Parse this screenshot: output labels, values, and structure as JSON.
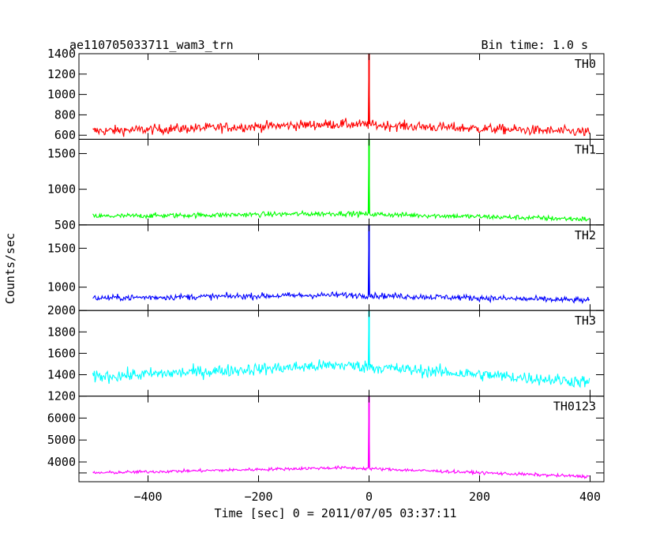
{
  "chart_data": {
    "type": "line",
    "title": "ae110705033711_wam3_trn",
    "subtitle": "Bin time: 1.0 s",
    "xlabel": "Time [sec] 0 = 2011/07/05 03:37:11",
    "ylabel": "Counts/sec",
    "xlim": [
      -525,
      425
    ],
    "x_ticks": [
      -400,
      -200,
      0,
      200,
      400
    ],
    "x_tick_labels": [
      "−400",
      "−200",
      "0",
      "200",
      "400"
    ],
    "grid": false,
    "panels": [
      {
        "name": "TH0",
        "color": "#ff0000",
        "ylim": [
          560,
          1400
        ],
        "y_ticks": [
          600,
          800,
          1000,
          1200,
          1400
        ],
        "y_tick_labels": [
          "600",
          "800",
          "1000",
          "1200",
          "1400"
        ],
        "peak_value": 1400,
        "start_level": 640,
        "mid_level": 710,
        "end_level": 630,
        "noise": 38,
        "points": [
          [
            -500,
            640
          ],
          [
            -400,
            670
          ],
          [
            -300,
            695
          ],
          [
            -200,
            708
          ],
          [
            -100,
            715
          ],
          [
            -50,
            712
          ],
          [
            0,
            1400
          ],
          [
            50,
            705
          ],
          [
            100,
            690
          ],
          [
            200,
            675
          ],
          [
            300,
            650
          ],
          [
            400,
            630
          ]
        ]
      },
      {
        "name": "TH1",
        "color": "#00ff00",
        "ylim": [
          500,
          1700
        ],
        "y_ticks": [
          500,
          1000,
          1500
        ],
        "y_tick_labels": [
          "500",
          "1000",
          "1500"
        ],
        "peak_value": 1700,
        "start_level": 620,
        "mid_level": 660,
        "end_level": 580,
        "noise": 28,
        "points": [
          [
            -500,
            620
          ],
          [
            -400,
            640
          ],
          [
            -300,
            652
          ],
          [
            -200,
            660
          ],
          [
            -100,
            663
          ],
          [
            -50,
            662
          ],
          [
            0,
            1700
          ],
          [
            50,
            655
          ],
          [
            100,
            645
          ],
          [
            200,
            625
          ],
          [
            300,
            605
          ],
          [
            400,
            580
          ]
        ]
      },
      {
        "name": "TH2",
        "color": "#0000ff",
        "ylim": [
          700,
          1800
        ],
        "y_ticks": [
          1000,
          1500
        ],
        "y_tick_labels": [
          "1000",
          "1500"
        ],
        "peak_value": 1800,
        "start_level": 860,
        "mid_level": 900,
        "end_level": 830,
        "noise": 30,
        "points": [
          [
            -500,
            860
          ],
          [
            -400,
            880
          ],
          [
            -300,
            890
          ],
          [
            -200,
            900
          ],
          [
            -100,
            905
          ],
          [
            -50,
            903
          ],
          [
            0,
            1800
          ],
          [
            50,
            895
          ],
          [
            100,
            880
          ],
          [
            200,
            865
          ],
          [
            300,
            845
          ],
          [
            400,
            830
          ]
        ]
      },
      {
        "name": "TH3",
        "color": "#00ffff",
        "ylim": [
          1200,
          2000
        ],
        "y_ticks": [
          1200,
          1400,
          1600,
          1800,
          2000
        ],
        "y_tick_labels": [
          "1200",
          "1400",
          "1600",
          "1800",
          "2000"
        ],
        "peak_value": 2000,
        "start_level": 1380,
        "mid_level": 1490,
        "end_level": 1330,
        "noise": 45,
        "points": [
          [
            -500,
            1380
          ],
          [
            -400,
            1420
          ],
          [
            -300,
            1450
          ],
          [
            -200,
            1470
          ],
          [
            -100,
            1485
          ],
          [
            -50,
            1490
          ],
          [
            0,
            2000
          ],
          [
            50,
            1480
          ],
          [
            100,
            1470
          ],
          [
            200,
            1430
          ],
          [
            300,
            1380
          ],
          [
            400,
            1330
          ]
        ]
      },
      {
        "name": "TH0123",
        "color": "#ff00ff",
        "ylim": [
          3100,
          7000
        ],
        "y_ticks": [
          4000,
          5000,
          6000
        ],
        "y_tick_labels": [
          "4000",
          "5000",
          "6000"
        ],
        "extra_tick_value": 3500,
        "peak_value": 7000,
        "start_level": 3500,
        "mid_level": 3740,
        "end_level": 3330,
        "noise": 55,
        "points": [
          [
            -500,
            3500
          ],
          [
            -400,
            3580
          ],
          [
            -300,
            3660
          ],
          [
            -200,
            3710
          ],
          [
            -100,
            3740
          ],
          [
            -50,
            3740
          ],
          [
            0,
            7000
          ],
          [
            50,
            3720
          ],
          [
            100,
            3680
          ],
          [
            200,
            3580
          ],
          [
            300,
            3450
          ],
          [
            400,
            3330
          ]
        ]
      }
    ]
  }
}
